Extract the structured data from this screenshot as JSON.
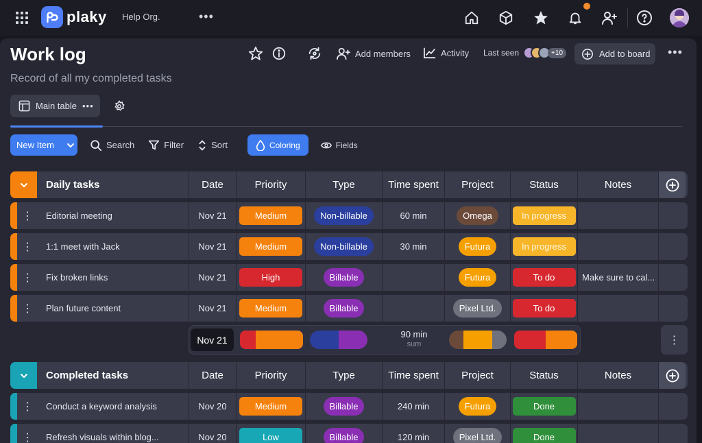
{
  "topbar": {
    "logo_text": "plaky",
    "org_name": "Help Org.",
    "more": "•••",
    "icons": [
      "home-icon",
      "cube-icon",
      "star-icon",
      "bell-icon",
      "add-user-icon",
      "help-icon"
    ],
    "notification_color": "#f28b2c"
  },
  "board": {
    "title": "Work log",
    "subtitle": "Record of all my completed tasks",
    "add_members": "Add members",
    "activity": "Activity",
    "last_seen": "Last seen",
    "last_seen_count": "+10",
    "add_to_board": "Add to board",
    "more": "•••"
  },
  "view": {
    "tab_label": "Main table",
    "tab_more": "•••"
  },
  "toolbar": {
    "new_item": "New Item",
    "search": "Search",
    "filter": "Filter",
    "sort": "Sort",
    "coloring": "Coloring",
    "fields": "Fields"
  },
  "columns": [
    "Date",
    "Priority",
    "Type",
    "Time spent",
    "Project",
    "Status",
    "Notes"
  ],
  "colors": {
    "orange": "#f5820d",
    "teal": "#1aa3b4",
    "medium": "#f5820d",
    "high": "#d7282f",
    "low": "#18a7b5",
    "non_billable": "#2a3f9e",
    "billable": "#8a2fb3",
    "omega": "#6b4a3a",
    "futura": "#f5a000",
    "pixel": "#6f717c",
    "in_progress": "#f7b52a",
    "to_do": "#d7282f",
    "done": "#2f8f3a"
  },
  "groups": [
    {
      "name": "Daily tasks",
      "rows": [
        {
          "name": "Editorial meeting",
          "date": "Nov 21",
          "priority": "Medium",
          "type": "Non-billable",
          "time": "60 min",
          "project": "Omega",
          "status": "In progress",
          "notes": ""
        },
        {
          "name": "1:1 meet with Jack",
          "date": "Nov 21",
          "priority": "Medium",
          "type": "Non-billable",
          "time": "30 min",
          "project": "Futura",
          "status": "In progress",
          "notes": ""
        },
        {
          "name": "Fix broken links",
          "date": "Nov 21",
          "priority": "High",
          "type": "Billable",
          "time": "",
          "project": "Futura",
          "status": "To do",
          "notes": "Make sure to cal..."
        },
        {
          "name": "Plan future content",
          "date": "Nov 21",
          "priority": "Medium",
          "type": "Billable",
          "time": "",
          "project": "Pixel Ltd.",
          "status": "To do",
          "notes": ""
        }
      ],
      "summary": {
        "date": "Nov 21",
        "time": "90 min",
        "time_label": "sum",
        "priority_mix": [
          0.25,
          0.75
        ],
        "type_mix": [
          0.5,
          0.5
        ],
        "project_mix": [
          0.25,
          0.5,
          0.25
        ],
        "status_mix": [
          0.5,
          0.5
        ]
      }
    },
    {
      "name": "Completed tasks",
      "rows": [
        {
          "name": "Conduct a keyword analysis",
          "date": "Nov 20",
          "priority": "Medium",
          "type": "Billable",
          "time": "240 min",
          "project": "Futura",
          "status": "Done",
          "notes": ""
        },
        {
          "name": "Refresh visuals within blog...",
          "date": "Nov 20",
          "priority": "Low",
          "type": "Billable",
          "time": "120 min",
          "project": "Pixel Ltd.",
          "status": "Done",
          "notes": ""
        }
      ]
    }
  ]
}
